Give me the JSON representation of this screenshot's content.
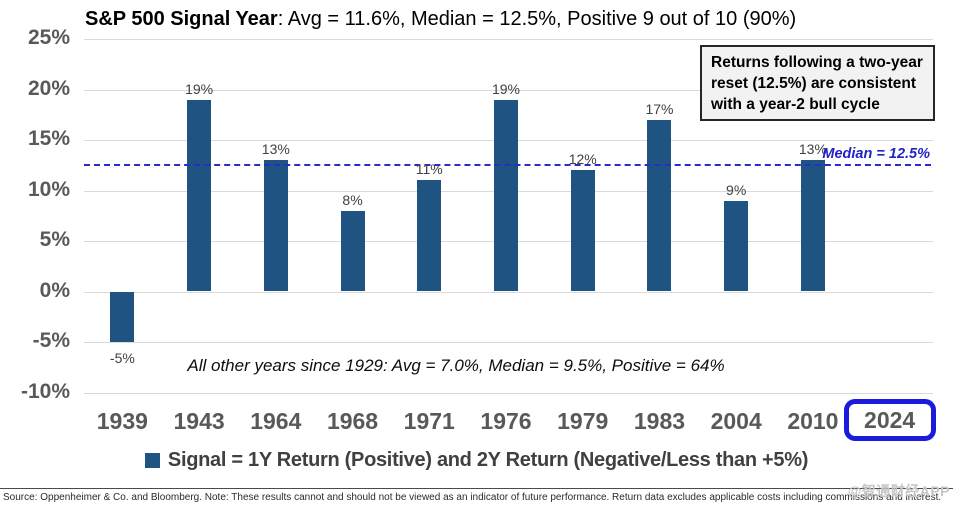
{
  "header": {
    "title_bold": "S&P 500 Signal Year",
    "title_rest": ": Avg = 11.6%, Median = 12.5%, Positive 9 out of 10 (90%)"
  },
  "callout": {
    "lines": {
      "0": "Returns following a two-year",
      "1": "reset (12.5%) are consistent",
      "2": "with a year-2 bull cycle"
    }
  },
  "median_label": "Median = 12.5%",
  "annotation": "All other years since 1929:  Avg = 7.0%, Median = 9.5%, Positive = 64%",
  "legend": {
    "label": "Signal = 1Y Return (Positive) and 2Y Return (Negative/Less than +5%)"
  },
  "footer": {
    "source": "Source: Oppenheimer & Co. and Bloomberg. Note: These results cannot and should not be viewed as an indicator of future performance. Return data excludes applicable costs including commissions and interest.",
    "watermark": "@智通财经APP"
  },
  "colors": {
    "bar": "#1F5382",
    "median": "#2B2BC8",
    "highlight_box": "#1B1BDD",
    "grid": "#D9D9D9",
    "axis_text": "#595959"
  },
  "chart_data": {
    "type": "bar",
    "title": "S&P 500 Signal Year: Avg = 11.6%, Median = 12.5%, Positive 9 out of 10 (90%)",
    "categories": [
      "1939",
      "1943",
      "1964",
      "1968",
      "1971",
      "1976",
      "1979",
      "1983",
      "2004",
      "2010",
      "2024"
    ],
    "values": [
      -5,
      19,
      13,
      8,
      11,
      19,
      12,
      17,
      9,
      13,
      null
    ],
    "bar_labels": [
      "-5%",
      "19%",
      "13%",
      "8%",
      "11%",
      "19%",
      "12%",
      "17%",
      "9%",
      "13%",
      ""
    ],
    "highlighted_category": "2024",
    "median_line": 12.5,
    "ylim": [
      -10,
      25
    ],
    "yticks": [
      25,
      20,
      15,
      10,
      5,
      0,
      -5,
      -10
    ],
    "ytick_labels": [
      "25%",
      "20%",
      "15%",
      "10%",
      "5%",
      "0%",
      "-5%",
      "-10%"
    ],
    "xlabel": "",
    "ylabel": "",
    "grid": true,
    "legend_entries": [
      "Signal = 1Y Return (Positive) and 2Y Return (Negative/Less than +5%)"
    ],
    "legend_position": "bottom",
    "annotations": [
      "All other years since 1929: Avg = 7.0%, Median = 9.5%, Positive = 64%",
      "Returns following a two-year reset (12.5%) are consistent with a year-2 bull cycle",
      "Median = 12.5%"
    ]
  }
}
